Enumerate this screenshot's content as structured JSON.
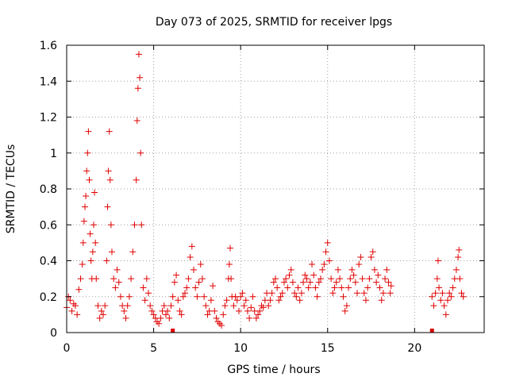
{
  "chart_data": {
    "type": "scatter",
    "title": "Day 073 of 2025, SRMTID for receiver lpgs",
    "xlabel": "GPS time / hours",
    "ylabel": "SRMTID / TECUs",
    "xlim": [
      0,
      24
    ],
    "ylim": [
      0,
      1.6
    ],
    "x_ticks": [
      0,
      5,
      10,
      15,
      20
    ],
    "x_tick_labels": [
      "0",
      "5",
      "10",
      "15",
      "20"
    ],
    "y_ticks": [
      0,
      0.2,
      0.4,
      0.6,
      0.8,
      1.0,
      1.2,
      1.4,
      1.6
    ],
    "y_tick_labels": [
      "0",
      "0.2",
      "0.4",
      "0.6",
      "0.8",
      "1",
      "1.2",
      "1.4",
      "1.6"
    ],
    "grid": true,
    "marker": "+",
    "color": "#e00000",
    "series": [
      {
        "name": "SRMTID",
        "points": [
          [
            0.0,
            0.14
          ],
          [
            0.1,
            0.2
          ],
          [
            0.2,
            0.18
          ],
          [
            0.3,
            0.12
          ],
          [
            0.4,
            0.16
          ],
          [
            0.5,
            0.15
          ],
          [
            0.6,
            0.1
          ],
          [
            0.7,
            0.24
          ],
          [
            0.8,
            0.3
          ],
          [
            0.9,
            0.38
          ],
          [
            0.95,
            0.5
          ],
          [
            1.0,
            0.62
          ],
          [
            1.05,
            0.7
          ],
          [
            1.1,
            0.76
          ],
          [
            1.15,
            0.9
          ],
          [
            1.2,
            1.0
          ],
          [
            1.25,
            1.12
          ],
          [
            1.3,
            0.85
          ],
          [
            1.35,
            0.55
          ],
          [
            1.4,
            0.4
          ],
          [
            1.45,
            0.3
          ],
          [
            1.5,
            0.45
          ],
          [
            1.55,
            0.6
          ],
          [
            1.6,
            0.78
          ],
          [
            1.65,
            0.5
          ],
          [
            1.7,
            0.3
          ],
          [
            1.8,
            0.15
          ],
          [
            1.9,
            0.08
          ],
          [
            2.0,
            0.12
          ],
          [
            2.1,
            0.1
          ],
          [
            2.2,
            0.15
          ],
          [
            2.3,
            0.4
          ],
          [
            2.35,
            0.7
          ],
          [
            2.4,
            0.9
          ],
          [
            2.45,
            1.12
          ],
          [
            2.5,
            0.85
          ],
          [
            2.55,
            0.6
          ],
          [
            2.6,
            0.45
          ],
          [
            2.7,
            0.3
          ],
          [
            2.8,
            0.25
          ],
          [
            2.9,
            0.35
          ],
          [
            3.0,
            0.28
          ],
          [
            3.1,
            0.2
          ],
          [
            3.2,
            0.15
          ],
          [
            3.3,
            0.12
          ],
          [
            3.4,
            0.08
          ],
          [
            3.5,
            0.15
          ],
          [
            3.6,
            0.2
          ],
          [
            3.7,
            0.3
          ],
          [
            3.8,
            0.45
          ],
          [
            3.9,
            0.6
          ],
          [
            4.0,
            0.85
          ],
          [
            4.05,
            1.18
          ],
          [
            4.1,
            1.36
          ],
          [
            4.15,
            1.55
          ],
          [
            4.2,
            1.42
          ],
          [
            4.25,
            1.0
          ],
          [
            4.3,
            0.6
          ],
          [
            4.4,
            0.25
          ],
          [
            4.5,
            0.18
          ],
          [
            4.6,
            0.3
          ],
          [
            4.7,
            0.22
          ],
          [
            4.8,
            0.15
          ],
          [
            4.9,
            0.12
          ],
          [
            5.0,
            0.1
          ],
          [
            5.1,
            0.08
          ],
          [
            5.2,
            0.06
          ],
          [
            5.3,
            0.05
          ],
          [
            5.4,
            0.08
          ],
          [
            5.5,
            0.12
          ],
          [
            5.6,
            0.15
          ],
          [
            5.7,
            0.1
          ],
          [
            5.8,
            0.12
          ],
          [
            5.9,
            0.08
          ],
          [
            6.0,
            0.15
          ],
          [
            6.1,
            0.2
          ],
          [
            6.2,
            0.28
          ],
          [
            6.3,
            0.32
          ],
          [
            6.4,
            0.18
          ],
          [
            6.5,
            0.12
          ],
          [
            6.6,
            0.1
          ],
          [
            6.7,
            0.2
          ],
          [
            6.8,
            0.22
          ],
          [
            6.9,
            0.25
          ],
          [
            7.0,
            0.3
          ],
          [
            7.1,
            0.42
          ],
          [
            7.2,
            0.48
          ],
          [
            7.3,
            0.35
          ],
          [
            7.4,
            0.25
          ],
          [
            7.5,
            0.2
          ],
          [
            7.6,
            0.28
          ],
          [
            7.7,
            0.38
          ],
          [
            7.8,
            0.3
          ],
          [
            7.9,
            0.2
          ],
          [
            8.0,
            0.15
          ],
          [
            8.1,
            0.1
          ],
          [
            8.2,
            0.12
          ],
          [
            8.3,
            0.18
          ],
          [
            8.4,
            0.26
          ],
          [
            8.5,
            0.12
          ],
          [
            8.6,
            0.08
          ],
          [
            8.7,
            0.06
          ],
          [
            8.8,
            0.05
          ],
          [
            8.9,
            0.04
          ],
          [
            9.0,
            0.1
          ],
          [
            9.1,
            0.15
          ],
          [
            9.2,
            0.18
          ],
          [
            9.3,
            0.3
          ],
          [
            9.35,
            0.38
          ],
          [
            9.4,
            0.47
          ],
          [
            9.45,
            0.3
          ],
          [
            9.5,
            0.2
          ],
          [
            9.6,
            0.15
          ],
          [
            9.7,
            0.2
          ],
          [
            9.8,
            0.18
          ],
          [
            9.9,
            0.12
          ],
          [
            10.0,
            0.2
          ],
          [
            10.1,
            0.22
          ],
          [
            10.2,
            0.15
          ],
          [
            10.3,
            0.18
          ],
          [
            10.4,
            0.12
          ],
          [
            10.5,
            0.08
          ],
          [
            10.6,
            0.14
          ],
          [
            10.7,
            0.2
          ],
          [
            10.8,
            0.12
          ],
          [
            10.9,
            0.08
          ],
          [
            11.0,
            0.1
          ],
          [
            11.1,
            0.12
          ],
          [
            11.2,
            0.15
          ],
          [
            11.3,
            0.14
          ],
          [
            11.4,
            0.18
          ],
          [
            11.5,
            0.22
          ],
          [
            11.6,
            0.15
          ],
          [
            11.7,
            0.18
          ],
          [
            11.8,
            0.22
          ],
          [
            11.9,
            0.28
          ],
          [
            12.0,
            0.3
          ],
          [
            12.1,
            0.25
          ],
          [
            12.2,
            0.18
          ],
          [
            12.3,
            0.2
          ],
          [
            12.4,
            0.22
          ],
          [
            12.5,
            0.28
          ],
          [
            12.6,
            0.3
          ],
          [
            12.7,
            0.25
          ],
          [
            12.8,
            0.32
          ],
          [
            12.9,
            0.35
          ],
          [
            13.0,
            0.28
          ],
          [
            13.1,
            0.22
          ],
          [
            13.2,
            0.2
          ],
          [
            13.3,
            0.25
          ],
          [
            13.4,
            0.18
          ],
          [
            13.5,
            0.22
          ],
          [
            13.6,
            0.28
          ],
          [
            13.7,
            0.32
          ],
          [
            13.8,
            0.3
          ],
          [
            13.9,
            0.25
          ],
          [
            14.0,
            0.28
          ],
          [
            14.1,
            0.38
          ],
          [
            14.2,
            0.32
          ],
          [
            14.3,
            0.25
          ],
          [
            14.4,
            0.2
          ],
          [
            14.5,
            0.28
          ],
          [
            14.6,
            0.3
          ],
          [
            14.7,
            0.35
          ],
          [
            14.8,
            0.38
          ],
          [
            14.9,
            0.45
          ],
          [
            15.0,
            0.5
          ],
          [
            15.1,
            0.4
          ],
          [
            15.2,
            0.3
          ],
          [
            15.3,
            0.22
          ],
          [
            15.4,
            0.25
          ],
          [
            15.5,
            0.28
          ],
          [
            15.6,
            0.35
          ],
          [
            15.7,
            0.3
          ],
          [
            15.8,
            0.25
          ],
          [
            15.9,
            0.2
          ],
          [
            16.0,
            0.12
          ],
          [
            16.1,
            0.15
          ],
          [
            16.2,
            0.25
          ],
          [
            16.3,
            0.3
          ],
          [
            16.4,
            0.35
          ],
          [
            16.5,
            0.32
          ],
          [
            16.6,
            0.28
          ],
          [
            16.7,
            0.22
          ],
          [
            16.8,
            0.38
          ],
          [
            16.9,
            0.42
          ],
          [
            17.0,
            0.3
          ],
          [
            17.1,
            0.22
          ],
          [
            17.2,
            0.18
          ],
          [
            17.3,
            0.25
          ],
          [
            17.4,
            0.3
          ],
          [
            17.5,
            0.42
          ],
          [
            17.6,
            0.45
          ],
          [
            17.7,
            0.35
          ],
          [
            17.8,
            0.28
          ],
          [
            17.9,
            0.32
          ],
          [
            18.0,
            0.25
          ],
          [
            18.1,
            0.18
          ],
          [
            18.2,
            0.22
          ],
          [
            18.3,
            0.3
          ],
          [
            18.4,
            0.35
          ],
          [
            18.5,
            0.28
          ],
          [
            18.6,
            0.22
          ],
          [
            18.65,
            0.26
          ],
          [
            21.0,
            0.2
          ],
          [
            21.1,
            0.15
          ],
          [
            21.2,
            0.22
          ],
          [
            21.3,
            0.3
          ],
          [
            21.35,
            0.4
          ],
          [
            21.4,
            0.25
          ],
          [
            21.5,
            0.18
          ],
          [
            21.6,
            0.22
          ],
          [
            21.7,
            0.15
          ],
          [
            21.8,
            0.1
          ],
          [
            21.9,
            0.18
          ],
          [
            22.0,
            0.22
          ],
          [
            22.1,
            0.2
          ],
          [
            22.2,
            0.25
          ],
          [
            22.3,
            0.3
          ],
          [
            22.4,
            0.35
          ],
          [
            22.5,
            0.42
          ],
          [
            22.55,
            0.46
          ],
          [
            22.6,
            0.3
          ],
          [
            22.7,
            0.22
          ],
          [
            22.8,
            0.2
          ]
        ]
      }
    ],
    "gap_markers_x": [
      6.1,
      21.0
    ]
  }
}
